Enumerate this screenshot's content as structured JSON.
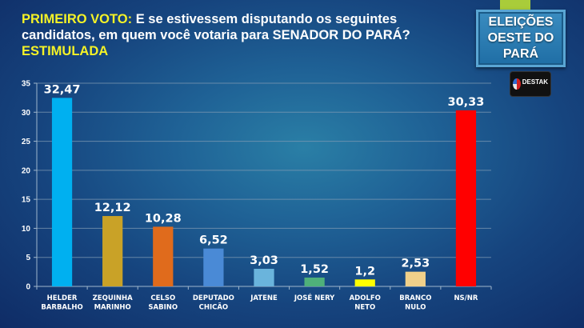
{
  "header": {
    "title_prefix": "PRIMEIRO VOTO:",
    "title_line1": " E se estivessem disputando os seguintes",
    "title_line2": "candidatos, em quem você votaria para SENADOR DO PARÁ?",
    "title_line3": "ESTIMULADA"
  },
  "badge": {
    "line1": "ELEIÇÕES",
    "line2": "OESTE DO",
    "line3": "PARÁ"
  },
  "logo": {
    "text": "DESTAK",
    "icon": "destak-logo-icon"
  },
  "colors": {
    "title_highlight": "#f4f227",
    "background": "#1a4f88"
  },
  "chart_data": {
    "type": "bar",
    "title": "PRIMEIRO VOTO: E se estivessem disputando os seguintes candidatos, em quem você votaria para SENADOR DO PARÁ? ESTIMULADA",
    "xlabel": "",
    "ylabel": "",
    "ylim": [
      0,
      35
    ],
    "yticks": [
      0,
      5,
      10,
      15,
      20,
      25,
      30,
      35
    ],
    "grid": true,
    "legend": "none",
    "categories": [
      [
        "HELDER",
        "BARBALHO"
      ],
      [
        "ZEQUINHA",
        "MARINHO"
      ],
      [
        "CELSO",
        "SABINO"
      ],
      [
        "DEPUTADO",
        "CHICÃO"
      ],
      [
        "JATENE"
      ],
      [
        "JOSÉ NERY"
      ],
      [
        "ADOLFO",
        "NETO"
      ],
      [
        "BRANCO",
        "NULO"
      ],
      [
        "NS/NR"
      ]
    ],
    "values": [
      32.47,
      12.12,
      10.28,
      6.52,
      3.03,
      1.52,
      1.2,
      2.53,
      30.33
    ],
    "value_labels": [
      "32,47",
      "12,12",
      "10,28",
      "6,52",
      "3,03",
      "1,52",
      "1,2",
      "2,53",
      "30,33"
    ],
    "bar_colors": [
      "#00b0f0",
      "#c9a227",
      "#e06b1c",
      "#4a8ad6",
      "#6ab4dc",
      "#4fb07a",
      "#ffff00",
      "#f0d08a",
      "#ff0000"
    ]
  }
}
